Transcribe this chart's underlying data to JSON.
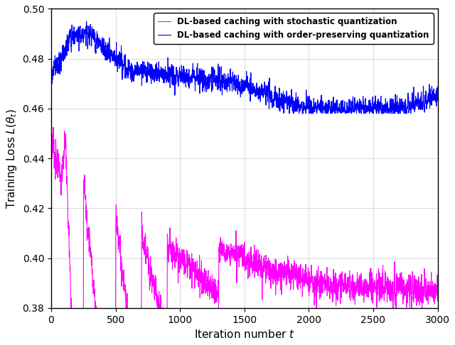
{
  "title": "",
  "xlabel": "Iteration number $t$",
  "ylabel": "Training Loss $L(\\theta_t)$",
  "xlim": [
    0,
    3000
  ],
  "ylim": [
    0.38,
    0.5
  ],
  "yticks": [
    0.38,
    0.4,
    0.42,
    0.44,
    0.46,
    0.48,
    0.5
  ],
  "xticks": [
    0,
    500,
    1000,
    1500,
    2000,
    2500,
    3000
  ],
  "magenta_color": "#FF00FF",
  "blue_color": "#0000FF",
  "magenta_label": "DL-based caching with stochastic quantization",
  "blue_label": "DL-based caching with order-preserving quantization",
  "linewidth": 0.8,
  "grid_color": "#BBBBBB",
  "grid_alpha": 0.6,
  "bg_color": "#FFFFFF",
  "legend_fontsize": 8.5,
  "axis_fontsize": 11,
  "tick_fontsize": 10
}
